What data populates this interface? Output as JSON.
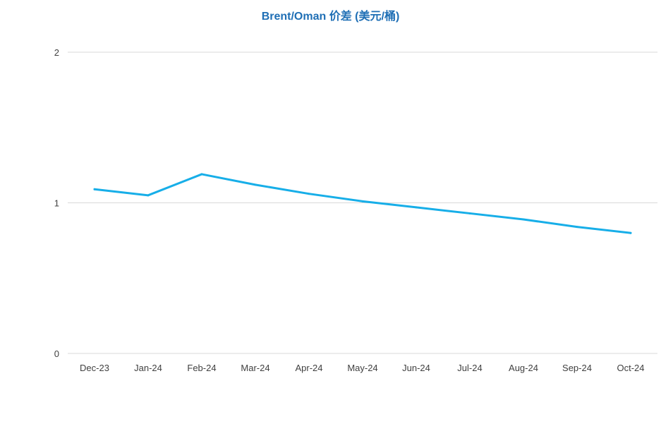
{
  "chart_data": {
    "type": "line",
    "title": "Brent/Oman 价差 (美元/桶)",
    "categories": [
      "Dec-23",
      "Jan-24",
      "Feb-24",
      "Mar-24",
      "Apr-24",
      "May-24",
      "Jun-24",
      "Jul-24",
      "Aug-24",
      "Sep-24",
      "Oct-24"
    ],
    "series": [
      {
        "values": [
          1.09,
          1.05,
          1.19,
          1.12,
          1.06,
          1.01,
          0.97,
          0.93,
          0.89,
          0.84,
          0.8
        ]
      }
    ],
    "yticks": [
      "0",
      "1",
      "2"
    ],
    "ylim": [
      0,
      2
    ],
    "grid": true,
    "legend": "none",
    "colors": {
      "line": "#17aee8",
      "grid": "#d9d9d9",
      "title": "#1f6fb5",
      "axis_text": "#404040"
    }
  }
}
